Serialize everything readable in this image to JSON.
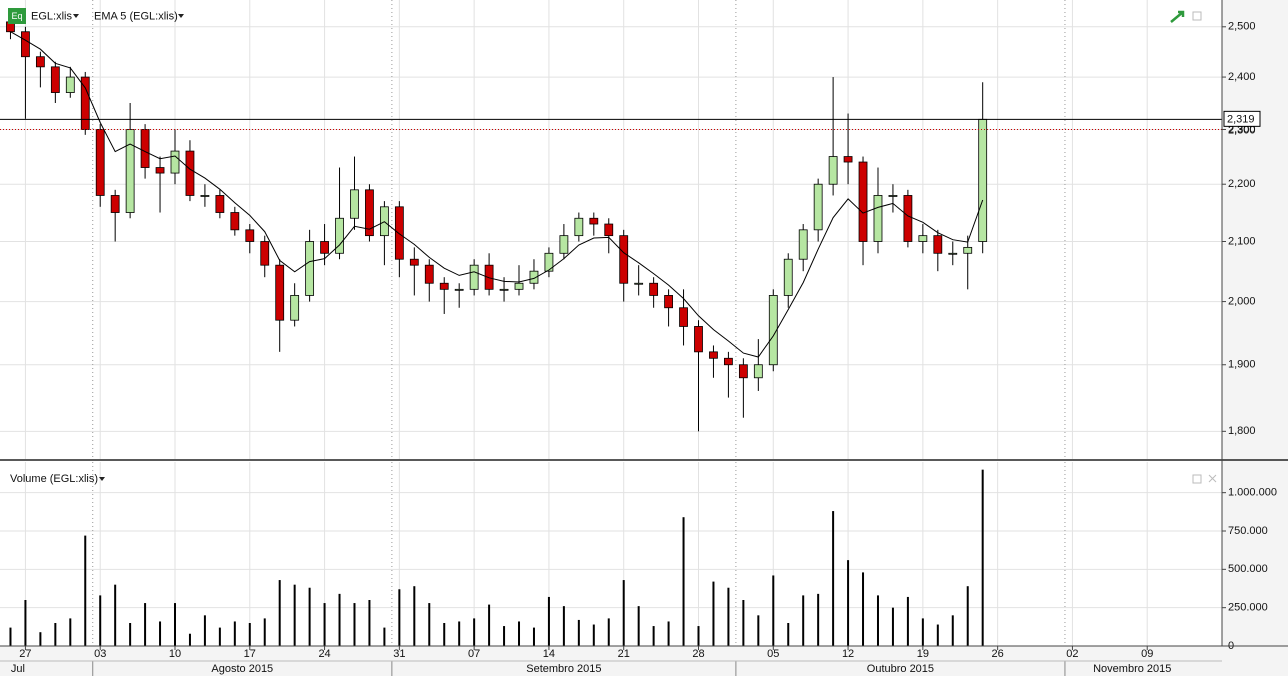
{
  "chart_data": [
    {
      "type": "candlestick",
      "name": "EGL:xlis",
      "icon": "Eq",
      "log": true,
      "grid": true,
      "up_color": "#b6e6a2",
      "down_color": "#cc0000",
      "ylim": [
        1760,
        2555
      ],
      "yticks": [
        {
          "value": 1800,
          "label": "1,800"
        },
        {
          "value": 1900,
          "label": "1,900"
        },
        {
          "value": 2000,
          "label": "2,000"
        },
        {
          "value": 2100,
          "label": "2,100"
        },
        {
          "value": 2200,
          "label": "2,200"
        },
        {
          "value": 2300,
          "label": "2,300"
        },
        {
          "value": 2400,
          "label": "2,400"
        },
        {
          "value": 2500,
          "label": "2,500"
        }
      ],
      "xlim": [
        -0.7,
        81
      ],
      "open": [
        2510,
        2490,
        2440,
        2420,
        2370,
        2400,
        2300,
        2180,
        2150,
        2300,
        2230,
        2220,
        2260,
        2180,
        2180,
        2150,
        2120,
        2100,
        2060,
        1970,
        2010,
        2100,
        2080,
        2140,
        2190,
        2110,
        2160,
        2070,
        2060,
        2030,
        2020,
        2020,
        2060,
        2020,
        2020,
        2030,
        2050,
        2080,
        2110,
        2140,
        2130,
        2110,
        2030,
        2030,
        2010,
        1990,
        1960,
        1920,
        1910,
        1900,
        1880,
        1900,
        2010,
        2070,
        2120,
        2200,
        2250,
        2240,
        2100,
        2180,
        2180,
        2100,
        2110,
        2080,
        2080,
        2100
      ],
      "high": [
        2525,
        2500,
        2450,
        2430,
        2420,
        2410,
        2310,
        2190,
        2350,
        2310,
        2250,
        2300,
        2280,
        2200,
        2190,
        2160,
        2130,
        2110,
        2070,
        2030,
        2120,
        2130,
        2230,
        2250,
        2200,
        2170,
        2170,
        2090,
        2070,
        2040,
        2030,
        2070,
        2080,
        2040,
        2060,
        2070,
        2090,
        2130,
        2150,
        2150,
        2140,
        2120,
        2060,
        2040,
        2020,
        2020,
        1970,
        1930,
        1920,
        1910,
        1940,
        2020,
        2080,
        2130,
        2210,
        2400,
        2330,
        2250,
        2230,
        2200,
        2190,
        2130,
        2120,
        2100,
        2110,
        2390
      ],
      "low": [
        2475,
        2320,
        2380,
        2350,
        2360,
        2290,
        2160,
        2100,
        2140,
        2210,
        2150,
        2200,
        2170,
        2160,
        2140,
        2110,
        2080,
        2040,
        1920,
        1960,
        2000,
        2060,
        2070,
        2120,
        2100,
        2060,
        2040,
        2010,
        2000,
        1980,
        1990,
        2010,
        2010,
        2000,
        2010,
        2020,
        2040,
        2070,
        2100,
        2110,
        2080,
        2000,
        2010,
        1990,
        1960,
        1930,
        1800,
        1880,
        1850,
        1820,
        1860,
        1890,
        1990,
        2050,
        2100,
        2180,
        2200,
        2060,
        2080,
        2150,
        2090,
        2080,
        2050,
        2060,
        2020,
        2080
      ],
      "close": [
        2490,
        2440,
        2420,
        2370,
        2400,
        2300,
        2180,
        2150,
        2300,
        2230,
        2220,
        2260,
        2180,
        2180,
        2150,
        2120,
        2100,
        2060,
        1970,
        2010,
        2100,
        2080,
        2140,
        2190,
        2110,
        2160,
        2070,
        2060,
        2030,
        2020,
        2020,
        2060,
        2020,
        2020,
        2030,
        2050,
        2080,
        2110,
        2140,
        2130,
        2110,
        2030,
        2030,
        2010,
        1990,
        1960,
        1920,
        1910,
        1900,
        1880,
        1900,
        2010,
        2070,
        2120,
        2200,
        2250,
        2240,
        2100,
        2180,
        2180,
        2100,
        2110,
        2080,
        2080,
        2090,
        2319
      ],
      "series": [
        {
          "name": "EMA 5 (EGL:xlis)",
          "color": "#000000",
          "values": [
            2490,
            2473,
            2455,
            2427,
            2418,
            2379,
            2313,
            2259,
            2273,
            2259,
            2246,
            2251,
            2227,
            2211,
            2191,
            2167,
            2145,
            2117,
            2068,
            2049,
            2066,
            2071,
            2094,
            2126,
            2121,
            2134,
            2113,
            2095,
            2073,
            2055,
            2043,
            2049,
            2039,
            2033,
            2032,
            2038,
            2052,
            2071,
            2094,
            2106,
            2107,
            2081,
            2064,
            2046,
            2027,
            2005,
            1977,
            1955,
            1937,
            1918,
            1912,
            1945,
            1987,
            2031,
            2087,
            2141,
            2174,
            2149,
            2159,
            2166,
            2144,
            2133,
            2115,
            2103,
            2099,
            2172
          ]
        }
      ],
      "last_price": {
        "value": 2319,
        "label": "2,319"
      },
      "reference_line": {
        "value": 2300,
        "label": "2,300"
      }
    },
    {
      "type": "bar",
      "title": "Volume (EGL:xlis)",
      "color": "#000000",
      "grid": true,
      "ylim": [
        0,
        1200000
      ],
      "yticks": [
        0,
        {
          "value": 250000,
          "label": "250.000"
        },
        {
          "value": 500000,
          "label": "500.000"
        },
        {
          "value": 750000,
          "label": "750.000"
        },
        {
          "value": 1000000,
          "label": "1.000.000"
        }
      ],
      "xlim": [
        -0.7,
        81
      ],
      "values": [
        120000,
        300000,
        90000,
        150000,
        180000,
        720000,
        330000,
        400000,
        150000,
        280000,
        160000,
        280000,
        80000,
        200000,
        120000,
        160000,
        150000,
        180000,
        430000,
        400000,
        380000,
        280000,
        340000,
        280000,
        300000,
        120000,
        370000,
        390000,
        280000,
        150000,
        160000,
        180000,
        270000,
        130000,
        160000,
        120000,
        320000,
        260000,
        170000,
        140000,
        180000,
        430000,
        260000,
        130000,
        160000,
        840000,
        130000,
        420000,
        380000,
        300000,
        200000,
        460000,
        150000,
        330000,
        340000,
        880000,
        560000,
        480000,
        330000,
        250000,
        320000,
        180000,
        140000,
        200000,
        390000,
        1150000
      ],
      "xticks": [
        {
          "value": 1,
          "label": "27"
        },
        {
          "value": 6,
          "label": "03"
        },
        {
          "value": 11,
          "label": "10"
        },
        {
          "value": 16,
          "label": "17"
        },
        {
          "value": 21,
          "label": "24"
        },
        {
          "value": 26,
          "label": "31"
        },
        {
          "value": 31,
          "label": "07"
        },
        {
          "value": 36,
          "label": "14"
        },
        {
          "value": 41,
          "label": "21"
        },
        {
          "value": 46,
          "label": "28"
        },
        {
          "value": 51,
          "label": "05"
        },
        {
          "value": 56,
          "label": "12"
        },
        {
          "value": 61,
          "label": "19"
        },
        {
          "value": 66,
          "label": "26"
        },
        {
          "value": 71,
          "label": "02"
        },
        {
          "value": 76,
          "label": "09"
        }
      ],
      "months": [
        {
          "value": 0.5,
          "label": "Jul"
        },
        {
          "value": 15.5,
          "label": "Agosto 2015"
        },
        {
          "value": 37,
          "label": "Setembro 2015"
        },
        {
          "value": 59.5,
          "label": "Outubro 2015"
        },
        {
          "value": 75,
          "label": "Novembro 2015"
        }
      ],
      "month_boundaries": [
        5.5,
        25.5,
        48.5,
        70.5
      ]
    }
  ]
}
